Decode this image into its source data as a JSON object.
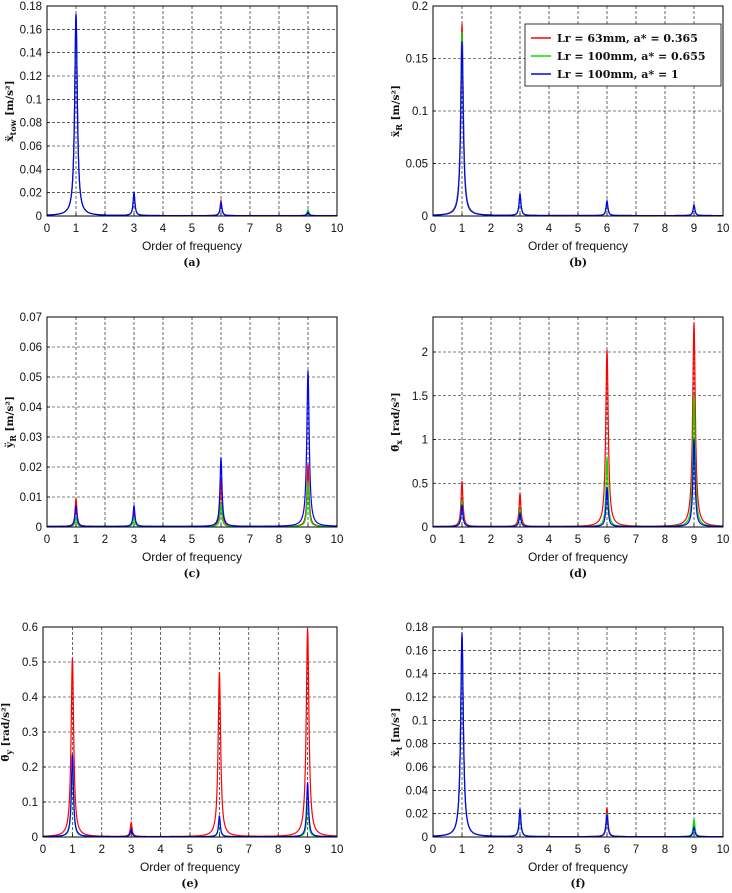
{
  "colors": {
    "red": "#ff0000",
    "green": "#00e000",
    "blue": "#0000ff",
    "grid": "#000000"
  },
  "legend": {
    "entries": [
      {
        "label": "Lr = 63mm, a* = 0.365",
        "color": "#ff0000"
      },
      {
        "label": "Lr = 100mm, a* = 0.655",
        "color": "#00e000"
      },
      {
        "label": "Lr = 100mm, a* = 1",
        "color": "#0000ff"
      }
    ]
  },
  "chart_data": [
    {
      "type": "line",
      "caption": "(a)",
      "xlabel": "Order of frequency",
      "ylabel": "ẍ_tow [m/s²]",
      "xlim": [
        0,
        10
      ],
      "ylim": [
        0,
        0.18
      ],
      "xticks": [
        "0",
        "1",
        "2",
        "3",
        "4",
        "5",
        "6",
        "7",
        "8",
        "9",
        "10"
      ],
      "yticks": [
        "0",
        "0.02",
        "0.04",
        "0.06",
        "0.08",
        "0.1",
        "0.12",
        "0.14",
        "0.16",
        "0.18"
      ],
      "grid": true,
      "series": [
        {
          "name": "Lr = 63mm, a* = 0.365",
          "color": "#ff0000",
          "peaks": [
            [
              1,
              0.172
            ],
            [
              3,
              0.019
            ],
            [
              6,
              0.013
            ],
            [
              9,
              0.004
            ]
          ],
          "floor": 0.0003
        },
        {
          "name": "Lr = 100mm, a* = 0.655",
          "color": "#00e000",
          "peaks": [
            [
              1,
              0.171
            ],
            [
              3,
              0.019
            ],
            [
              6,
              0.011
            ],
            [
              9,
              0.005
            ]
          ],
          "floor": 0.0003
        },
        {
          "name": "Lr = 100mm, a* = 1",
          "color": "#0000ff",
          "peaks": [
            [
              1,
              0.173
            ],
            [
              3,
              0.02
            ],
            [
              6,
              0.011
            ],
            [
              9,
              0.003
            ]
          ],
          "floor": 0.0003
        }
      ]
    },
    {
      "type": "line",
      "caption": "(b)",
      "xlabel": "Order of frequency",
      "ylabel": "ẍ_R [m/s²]",
      "xlim": [
        0,
        10
      ],
      "ylim": [
        0,
        0.2
      ],
      "xticks": [
        "0",
        "1",
        "2",
        "3",
        "4",
        "5",
        "6",
        "7",
        "8",
        "9",
        "10"
      ],
      "yticks": [
        "0",
        "0.05",
        "0.1",
        "0.15",
        "0.2"
      ],
      "grid": true,
      "legend": "top-right",
      "series": [
        {
          "name": "Lr = 63mm, a* = 0.365",
          "color": "#ff0000",
          "peaks": [
            [
              1,
              0.183
            ],
            [
              3,
              0.02
            ],
            [
              6,
              0.013
            ],
            [
              9,
              0.01
            ]
          ],
          "floor": 0.0004
        },
        {
          "name": "Lr = 100mm, a* = 0.655",
          "color": "#00e000",
          "peaks": [
            [
              1,
              0.175
            ],
            [
              3,
              0.02
            ],
            [
              6,
              0.013
            ],
            [
              9,
              0.01
            ]
          ],
          "floor": 0.0004
        },
        {
          "name": "Lr = 100mm, a* = 1",
          "color": "#0000ff",
          "peaks": [
            [
              1,
              0.166
            ],
            [
              3,
              0.021
            ],
            [
              6,
              0.014
            ],
            [
              9,
              0.01
            ]
          ],
          "floor": 0.0004
        }
      ]
    },
    {
      "type": "line",
      "caption": "(c)",
      "xlabel": "Order of frequency",
      "ylabel": "ÿ_R [m/s²]",
      "xlim": [
        0,
        10
      ],
      "ylim": [
        0,
        0.07
      ],
      "xticks": [
        "0",
        "1",
        "2",
        "3",
        "4",
        "5",
        "6",
        "7",
        "8",
        "9",
        "10"
      ],
      "yticks": [
        "0",
        "0.01",
        "0.02",
        "0.03",
        "0.04",
        "0.05",
        "0.06",
        "0.07"
      ],
      "grid": true,
      "series": [
        {
          "name": "Lr = 63mm, a* = 0.365",
          "color": "#ff0000",
          "peaks": [
            [
              1,
              0.0093
            ],
            [
              3,
              0.0045
            ],
            [
              6,
              0.016
            ],
            [
              9,
              0.021
            ]
          ],
          "floor": 0.0002
        },
        {
          "name": "Lr = 100mm, a* = 0.655",
          "color": "#00e000",
          "peaks": [
            [
              1,
              0.003
            ],
            [
              3,
              0.003
            ],
            [
              6,
              0.0075
            ],
            [
              9,
              0.015
            ]
          ],
          "floor": 0.0002
        },
        {
          "name": "Lr = 100mm, a* = 1",
          "color": "#0000ff",
          "peaks": [
            [
              1,
              0.007
            ],
            [
              3,
              0.007
            ],
            [
              6,
              0.023
            ],
            [
              9,
              0.052
            ]
          ],
          "floor": 0.0002
        }
      ]
    },
    {
      "type": "line",
      "caption": "(d)",
      "xlabel": "Order of frequency",
      "ylabel": "θ̈_x [rad/s²]",
      "xlim": [
        0,
        10
      ],
      "ylim": [
        0,
        2.4
      ],
      "xticks": [
        "0",
        "1",
        "2",
        "3",
        "4",
        "5",
        "6",
        "7",
        "8",
        "9",
        "10"
      ],
      "yticks": [
        "0",
        "0.5",
        "1",
        "1.5",
        "2"
      ],
      "grid": true,
      "series": [
        {
          "name": "Lr = 63mm, a* = 0.365",
          "color": "#ff0000",
          "peaks": [
            [
              1,
              0.52
            ],
            [
              3,
              0.38
            ],
            [
              6,
              2.02
            ],
            [
              9,
              2.33
            ]
          ],
          "floor": 0.005
        },
        {
          "name": "Lr = 100mm, a* = 0.655",
          "color": "#00e000",
          "peaks": [
            [
              1,
              0.3
            ],
            [
              3,
              0.2
            ],
            [
              6,
              0.8
            ],
            [
              9,
              1.5
            ]
          ],
          "floor": 0.005
        },
        {
          "name": "Lr = 100mm, a* = 1",
          "color": "#0000ff",
          "peaks": [
            [
              1,
              0.25
            ],
            [
              3,
              0.15
            ],
            [
              6,
              0.45
            ],
            [
              9,
              1.0
            ]
          ],
          "floor": 0.005
        }
      ]
    },
    {
      "type": "line",
      "caption": "(e)",
      "xlabel": "Order of frequency",
      "ylabel": "θ̈_y [rad/s²]",
      "xlim": [
        0,
        10
      ],
      "ylim": [
        0,
        0.6
      ],
      "xticks": [
        "0",
        "1",
        "2",
        "3",
        "4",
        "5",
        "6",
        "7",
        "8",
        "9",
        "10"
      ],
      "yticks": [
        "0",
        "0.1",
        "0.2",
        "0.3",
        "0.4",
        "0.5",
        "0.6"
      ],
      "grid": true,
      "series": [
        {
          "name": "Lr = 63mm, a* = 0.365",
          "color": "#ff0000",
          "peaks": [
            [
              1,
              0.51
            ],
            [
              3,
              0.04
            ],
            [
              6,
              0.47
            ],
            [
              9,
              0.595
            ]
          ],
          "floor": 0.001
        },
        {
          "name": "Lr = 100mm, a* = 0.655",
          "color": "#00e000",
          "peaks": [
            [
              1,
              0.2
            ],
            [
              3,
              0.02
            ],
            [
              6,
              0.05
            ],
            [
              9,
              0.1
            ]
          ],
          "floor": 0.001
        },
        {
          "name": "Lr = 100mm, a* = 1",
          "color": "#0000ff",
          "peaks": [
            [
              1,
              0.235
            ],
            [
              3,
              0.02
            ],
            [
              6,
              0.06
            ],
            [
              9,
              0.155
            ]
          ],
          "floor": 0.001
        }
      ]
    },
    {
      "type": "line",
      "caption": "(f)",
      "xlabel": "Order of frequency",
      "ylabel": "ẍ_t [m/s²]",
      "xlim": [
        0,
        10
      ],
      "ylim": [
        0,
        0.18
      ],
      "xticks": [
        "0",
        "1",
        "2",
        "3",
        "4",
        "5",
        "6",
        "7",
        "8",
        "9",
        "10"
      ],
      "yticks": [
        "0",
        "0.02",
        "0.04",
        "0.06",
        "0.08",
        "0.1",
        "0.12",
        "0.14",
        "0.16",
        "0.18"
      ],
      "grid": true,
      "series": [
        {
          "name": "Lr = 63mm, a* = 0.365",
          "color": "#ff0000",
          "peaks": [
            [
              1,
              0.172
            ],
            [
              3,
              0.022
            ],
            [
              6,
              0.025
            ],
            [
              9,
              0.012
            ]
          ],
          "floor": 0.0003
        },
        {
          "name": "Lr = 100mm, a* = 0.655",
          "color": "#00e000",
          "peaks": [
            [
              1,
              0.17
            ],
            [
              3,
              0.021
            ],
            [
              6,
              0.02
            ],
            [
              9,
              0.015
            ]
          ],
          "floor": 0.0003
        },
        {
          "name": "Lr = 100mm, a* = 1",
          "color": "#0000ff",
          "peaks": [
            [
              1,
              0.175
            ],
            [
              3,
              0.024
            ],
            [
              6,
              0.019
            ],
            [
              9,
              0.008
            ]
          ],
          "floor": 0.0003
        }
      ]
    }
  ]
}
